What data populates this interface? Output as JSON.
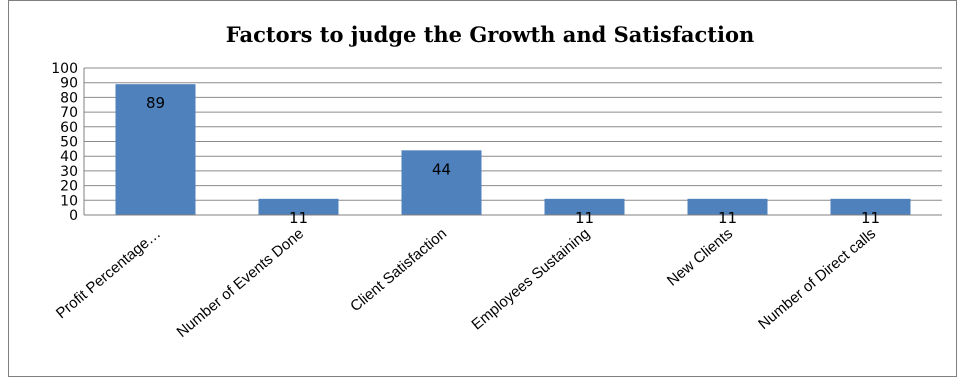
{
  "chart_data": {
    "type": "bar",
    "title": "Factors to judge the Growth and Satisfaction",
    "xlabel": "",
    "ylabel": "",
    "categories": [
      "Profit Percentage…",
      "Number of Events Done",
      "Client Satisfaction",
      "Employees Sustaining",
      "New Clients",
      "Number of Direct calls"
    ],
    "values": [
      89,
      11,
      44,
      11,
      11,
      11
    ],
    "ylim": [
      0,
      100
    ],
    "yticks": [
      "0",
      "10",
      "20",
      "30",
      "40",
      "50",
      "60",
      "70",
      "80",
      "90",
      "100"
    ],
    "grid": true,
    "legend": "none",
    "bar_color": "#4f81bd",
    "grid_color": "#8c8c8c"
  }
}
